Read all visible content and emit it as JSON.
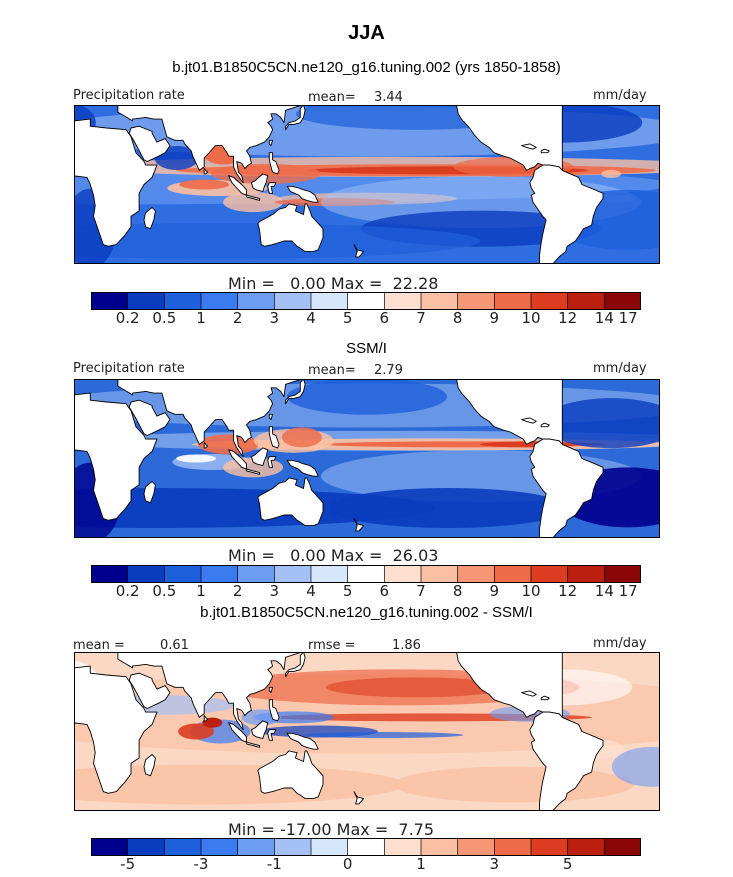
{
  "figure": {
    "season": "JJA",
    "model_title": "b.jt01.B1850C5CN.ne120_g16.tuning.002 (yrs 1850-1858)",
    "obs_title": "SSM/I",
    "diff_title": "b.jt01.B1850C5CN.ne120_g16.tuning.002 - SSM/I"
  },
  "chart_data": [
    {
      "type": "heatmap",
      "id": "model",
      "variable_label": "Precipitation rate",
      "units": "mm/day",
      "mean_label": "mean=",
      "mean_value": "3.44",
      "min_label": "Min =",
      "min_value": "0.00",
      "max_label": "Max =",
      "max_value": "22.28",
      "colorbar_ticks": [
        "0.2",
        "0.5",
        "1",
        "2",
        "3",
        "4",
        "5",
        "6",
        "7",
        "8",
        "9",
        "10",
        "12",
        "14",
        "17"
      ],
      "colors": [
        "#00008f",
        "#0a3cbf",
        "#1e5fdc",
        "#3a7cf0",
        "#6d9cf3",
        "#a4c1f5",
        "#d6e6fb",
        "#ffffff",
        "#fde0cf",
        "#fbc0a3",
        "#f59676",
        "#ee6b4a",
        "#dc3d21",
        "#bb1f0f",
        "#8a0505"
      ]
    },
    {
      "type": "heatmap",
      "id": "observed",
      "variable_label": "Precipitation rate",
      "units": "mm/day",
      "mean_label": "mean=",
      "mean_value": "2.79",
      "min_label": "Min =",
      "min_value": "0.00",
      "max_label": "Max =",
      "max_value": "26.03",
      "colorbar_ticks": [
        "0.2",
        "0.5",
        "1",
        "2",
        "3",
        "4",
        "5",
        "6",
        "7",
        "8",
        "9",
        "10",
        "12",
        "14",
        "17"
      ],
      "colors": [
        "#00008f",
        "#0a3cbf",
        "#1e5fdc",
        "#3a7cf0",
        "#6d9cf3",
        "#a4c1f5",
        "#d6e6fb",
        "#ffffff",
        "#fde0cf",
        "#fbc0a3",
        "#f59676",
        "#ee6b4a",
        "#dc3d21",
        "#bb1f0f",
        "#8a0505"
      ]
    },
    {
      "type": "heatmap",
      "id": "difference",
      "units": "mm/day",
      "mean_label": "mean =",
      "mean_value": "0.61",
      "rmse_label": "rmse =",
      "rmse_value": "1.86",
      "min_label": "Min =",
      "min_value": "-17.00",
      "max_label": "Max =",
      "max_value": "7.75",
      "colorbar_ticks": [
        "-5",
        "-3",
        "-1",
        "0",
        "1",
        "3",
        "5"
      ],
      "colors": [
        "#00008f",
        "#0a3cbf",
        "#1e5fdc",
        "#3a7cf0",
        "#6d9cf3",
        "#a4c1f5",
        "#d6e6fb",
        "#ffffff",
        "#fde0cf",
        "#fbc0a3",
        "#f59676",
        "#ee6b4a",
        "#dc3d21",
        "#bb1f0f",
        "#8a0505"
      ]
    }
  ]
}
